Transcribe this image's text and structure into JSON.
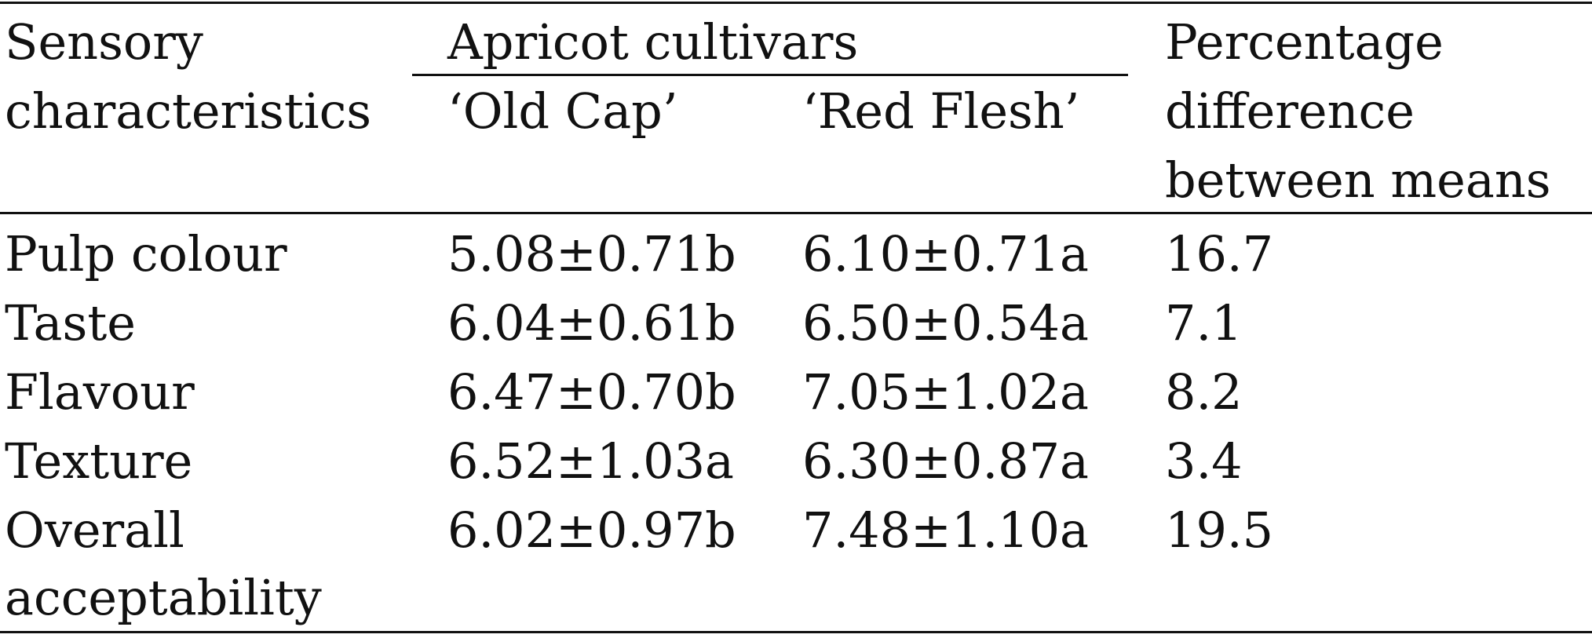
{
  "table": {
    "header": {
      "col_sensory": [
        "Sensory",
        "characteristics"
      ],
      "group_label": "Apricot cultivars",
      "cultivar_1": "‘Old Cap’",
      "cultivar_2": "‘Red Flesh’",
      "col_diff": [
        "Percentage",
        "difference",
        "between means"
      ]
    },
    "rows": [
      {
        "label": [
          "Pulp colour"
        ],
        "old_cap": "5.08±0.71b",
        "red_flesh": "6.10±0.71a",
        "diff": "16.7"
      },
      {
        "label": [
          "Taste"
        ],
        "old_cap": "6.04±0.61b",
        "red_flesh": "6.50±0.54a",
        "diff": "7.1"
      },
      {
        "label": [
          "Flavour"
        ],
        "old_cap": "6.47±0.70b",
        "red_flesh": "7.05±1.02a",
        "diff": "8.2"
      },
      {
        "label": [
          "Texture"
        ],
        "old_cap": "6.52±1.03a",
        "red_flesh": "6.30±0.87a",
        "diff": "3.4"
      },
      {
        "label": [
          "Overall",
          "acceptability"
        ],
        "old_cap": "6.02±0.97b",
        "red_flesh": "7.48±1.10a",
        "diff": "19.5"
      }
    ]
  }
}
